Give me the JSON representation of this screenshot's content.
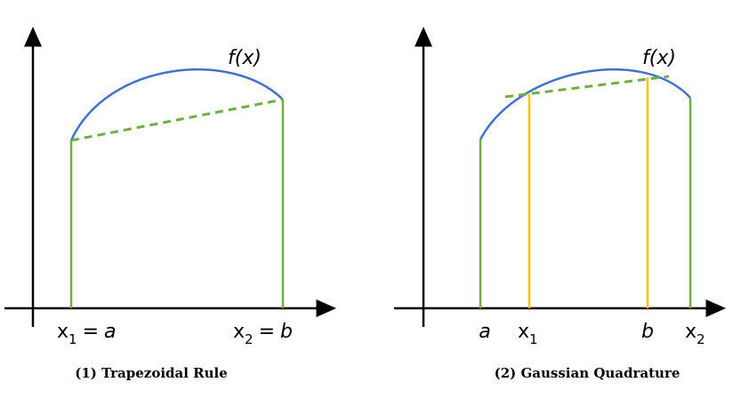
{
  "panels": [
    {
      "function_label": "f(x)",
      "caption": "(1) Trapezoidal Rule",
      "axis_labels": [
        {
          "text": "x",
          "sub": "1",
          "op": "=",
          "var": "a"
        },
        {
          "text": "x",
          "sub": "2",
          "op": "=",
          "var": "b"
        }
      ]
    },
    {
      "function_label": "f(x)",
      "caption": "(2) Gaussian Quadrature",
      "axis_labels": [
        {
          "var": "a"
        },
        {
          "text": "x",
          "sub": "1"
        },
        {
          "var": "b"
        },
        {
          "text": "x",
          "sub": "2"
        }
      ]
    }
  ]
}
